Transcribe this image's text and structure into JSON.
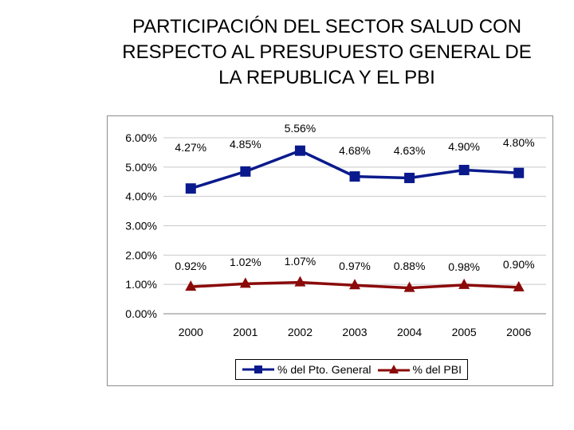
{
  "title": {
    "lines": [
      "PARTICIPACIÓN DEL SECTOR SALUD CON",
      "RESPECTO AL PRESUPUESTO GENERAL DE",
      "LA REPUBLICA Y EL PBI"
    ]
  },
  "chart_data": {
    "type": "line",
    "title": "",
    "xlabel": "",
    "ylabel": "",
    "ylim": [
      0,
      6
    ],
    "y_ticks": [
      "0.00%",
      "1.00%",
      "2.00%",
      "3.00%",
      "4.00%",
      "5.00%",
      "6.00%"
    ],
    "grid": true,
    "legend_position": "bottom",
    "categories": [
      "2000",
      "2001",
      "2002",
      "2003",
      "2004",
      "2005",
      "2006"
    ],
    "series": [
      {
        "name": "% del Pto. General",
        "color": "#0a1a8c",
        "marker": "square",
        "values": [
          4.27,
          4.85,
          5.56,
          4.68,
          4.63,
          4.9,
          4.8
        ],
        "labels": [
          "4.27%",
          "4.85%",
          "5.56%",
          "4.68%",
          "4.63%",
          "4.90%",
          "4.80%"
        ]
      },
      {
        "name": "% del PBI",
        "color": "#8b0a0a",
        "marker": "triangle",
        "values": [
          0.92,
          1.02,
          1.07,
          0.97,
          0.88,
          0.98,
          0.9
        ],
        "labels": [
          "0.92%",
          "1.02%",
          "1.07%",
          "0.97%",
          "0.88%",
          "0.98%",
          "0.90%"
        ]
      }
    ]
  }
}
